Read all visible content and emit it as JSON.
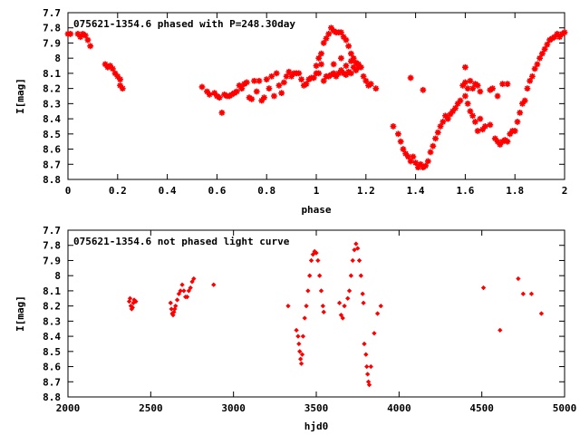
{
  "chart_data": [
    {
      "type": "scatter",
      "title": "075621-1354.6 phased with P=248.30day",
      "xlabel": "phase",
      "ylabel": "I[mag]",
      "xlim": [
        0,
        2
      ],
      "ylim": [
        8.8,
        7.7
      ],
      "y_inverted": true,
      "x_ticks": [
        "0",
        "0.2",
        "0.4",
        "0.6",
        "0.8",
        "1",
        "1.2",
        "1.4",
        "1.6",
        "1.8",
        "2"
      ],
      "y_ticks": [
        "7.7",
        "7.8",
        "7.9",
        "8",
        "8.1",
        "8.2",
        "8.3",
        "8.4",
        "8.5",
        "8.6",
        "8.7",
        "8.8"
      ],
      "marker": "star",
      "color": "#ff0000",
      "grid": false,
      "points": [
        [
          0.0,
          7.84
        ],
        [
          0.01,
          7.84
        ],
        [
          0.04,
          7.84
        ],
        [
          0.05,
          7.86
        ],
        [
          0.06,
          7.84
        ],
        [
          0.07,
          7.85
        ],
        [
          0.08,
          7.88
        ],
        [
          0.09,
          7.92
        ],
        [
          0.15,
          8.04
        ],
        [
          0.16,
          8.06
        ],
        [
          0.17,
          8.05
        ],
        [
          0.18,
          8.07
        ],
        [
          0.19,
          8.1
        ],
        [
          0.2,
          8.12
        ],
        [
          0.21,
          8.14
        ],
        [
          0.21,
          8.18
        ],
        [
          0.22,
          8.2
        ],
        [
          0.54,
          8.19
        ],
        [
          0.56,
          8.22
        ],
        [
          0.57,
          8.24
        ],
        [
          0.59,
          8.23
        ],
        [
          0.6,
          8.25
        ],
        [
          0.61,
          8.26
        ],
        [
          0.62,
          8.36
        ],
        [
          0.63,
          8.24
        ],
        [
          0.64,
          8.25
        ],
        [
          0.65,
          8.25
        ],
        [
          0.66,
          8.24
        ],
        [
          0.67,
          8.23
        ],
        [
          0.68,
          8.22
        ],
        [
          0.69,
          8.18
        ],
        [
          0.7,
          8.2
        ],
        [
          0.71,
          8.17
        ],
        [
          0.72,
          8.16
        ],
        [
          0.73,
          8.26
        ],
        [
          0.74,
          8.27
        ],
        [
          0.75,
          8.15
        ],
        [
          0.76,
          8.22
        ],
        [
          0.77,
          8.15
        ],
        [
          0.78,
          8.28
        ],
        [
          0.79,
          8.26
        ],
        [
          0.8,
          8.14
        ],
        [
          0.81,
          8.2
        ],
        [
          0.82,
          8.12
        ],
        [
          0.83,
          8.25
        ],
        [
          0.84,
          8.1
        ],
        [
          0.85,
          8.18
        ],
        [
          0.86,
          8.23
        ],
        [
          0.87,
          8.16
        ],
        [
          0.88,
          8.12
        ],
        [
          0.89,
          8.09
        ],
        [
          0.9,
          8.12
        ],
        [
          0.91,
          8.1
        ],
        [
          0.92,
          8.1
        ],
        [
          0.93,
          8.1
        ],
        [
          0.94,
          8.14
        ],
        [
          0.95,
          8.18
        ],
        [
          0.96,
          8.17
        ],
        [
          0.97,
          8.14
        ],
        [
          0.98,
          8.13
        ],
        [
          0.99,
          8.13
        ],
        [
          1.0,
          8.1
        ],
        [
          1.01,
          8.1
        ],
        [
          1.02,
          8.04
        ],
        [
          1.0,
          8.05
        ],
        [
          1.01,
          8.0
        ],
        [
          1.02,
          7.97
        ],
        [
          1.03,
          7.9
        ],
        [
          1.04,
          7.87
        ],
        [
          1.05,
          7.84
        ],
        [
          1.06,
          7.8
        ],
        [
          1.07,
          7.82
        ],
        [
          1.08,
          7.83
        ],
        [
          1.09,
          7.83
        ],
        [
          1.1,
          7.83
        ],
        [
          1.11,
          7.86
        ],
        [
          1.12,
          7.88
        ],
        [
          1.13,
          7.92
        ],
        [
          1.14,
          7.97
        ],
        [
          1.15,
          8.0
        ],
        [
          1.16,
          8.03
        ],
        [
          1.03,
          8.15
        ],
        [
          1.04,
          8.12
        ],
        [
          1.05,
          8.12
        ],
        [
          1.06,
          8.11
        ],
        [
          1.07,
          8.1
        ],
        [
          1.08,
          8.12
        ],
        [
          1.09,
          8.1
        ],
        [
          1.1,
          8.08
        ],
        [
          1.11,
          8.1
        ],
        [
          1.12,
          8.11
        ],
        [
          1.13,
          8.09
        ],
        [
          1.14,
          8.1
        ],
        [
          1.15,
          8.06
        ],
        [
          1.16,
          8.08
        ],
        [
          1.17,
          8.04
        ],
        [
          1.18,
          8.06
        ],
        [
          1.07,
          8.04
        ],
        [
          1.1,
          8.0
        ],
        [
          1.12,
          8.05
        ],
        [
          1.14,
          8.02
        ],
        [
          1.17,
          8.06
        ],
        [
          1.19,
          8.12
        ],
        [
          1.2,
          8.15
        ],
        [
          1.21,
          8.18
        ],
        [
          1.22,
          8.17
        ],
        [
          1.24,
          8.2
        ],
        [
          1.31,
          8.45
        ],
        [
          1.33,
          8.5
        ],
        [
          1.34,
          8.55
        ],
        [
          1.35,
          8.6
        ],
        [
          1.36,
          8.63
        ],
        [
          1.37,
          8.65
        ],
        [
          1.38,
          8.68
        ],
        [
          1.39,
          8.65
        ],
        [
          1.4,
          8.69
        ],
        [
          1.41,
          8.72
        ],
        [
          1.42,
          8.7
        ],
        [
          1.43,
          8.72
        ],
        [
          1.44,
          8.71
        ],
        [
          1.45,
          8.68
        ],
        [
          1.38,
          8.13
        ],
        [
          1.43,
          8.21
        ],
        [
          1.46,
          8.62
        ],
        [
          1.47,
          8.58
        ],
        [
          1.48,
          8.53
        ],
        [
          1.49,
          8.49
        ],
        [
          1.5,
          8.45
        ],
        [
          1.51,
          8.42
        ],
        [
          1.52,
          8.38
        ],
        [
          1.53,
          8.4
        ],
        [
          1.54,
          8.37
        ],
        [
          1.55,
          8.35
        ],
        [
          1.56,
          8.33
        ],
        [
          1.57,
          8.3
        ],
        [
          1.58,
          8.28
        ],
        [
          1.59,
          8.18
        ],
        [
          1.6,
          8.16
        ],
        [
          1.61,
          8.2
        ],
        [
          1.62,
          8.15
        ],
        [
          1.63,
          8.2
        ],
        [
          1.64,
          8.17
        ],
        [
          1.65,
          8.18
        ],
        [
          1.66,
          8.22
        ],
        [
          1.6,
          8.06
        ],
        [
          1.6,
          8.25
        ],
        [
          1.61,
          8.3
        ],
        [
          1.62,
          8.35
        ],
        [
          1.63,
          8.38
        ],
        [
          1.64,
          8.42
        ],
        [
          1.65,
          8.48
        ],
        [
          1.66,
          8.4
        ],
        [
          1.67,
          8.47
        ],
        [
          1.68,
          8.45
        ],
        [
          1.7,
          8.44
        ],
        [
          1.7,
          8.21
        ],
        [
          1.71,
          8.2
        ],
        [
          1.72,
          8.53
        ],
        [
          1.73,
          8.55
        ],
        [
          1.74,
          8.57
        ],
        [
          1.75,
          8.55
        ],
        [
          1.76,
          8.54
        ],
        [
          1.77,
          8.55
        ],
        [
          1.73,
          8.25
        ],
        [
          1.75,
          8.17
        ],
        [
          1.77,
          8.17
        ],
        [
          1.78,
          8.5
        ],
        [
          1.79,
          8.48
        ],
        [
          1.8,
          8.48
        ],
        [
          1.81,
          8.42
        ],
        [
          1.82,
          8.36
        ],
        [
          1.83,
          8.3
        ],
        [
          1.84,
          8.28
        ],
        [
          1.85,
          8.2
        ],
        [
          1.86,
          8.15
        ],
        [
          1.87,
          8.12
        ],
        [
          1.88,
          8.07
        ],
        [
          1.89,
          8.04
        ],
        [
          1.9,
          8.0
        ],
        [
          1.91,
          7.97
        ],
        [
          1.92,
          7.94
        ],
        [
          1.93,
          7.91
        ],
        [
          1.94,
          7.88
        ],
        [
          1.95,
          7.87
        ],
        [
          1.96,
          7.86
        ],
        [
          1.97,
          7.84
        ],
        [
          1.98,
          7.86
        ],
        [
          1.99,
          7.84
        ],
        [
          2.0,
          7.83
        ]
      ]
    },
    {
      "type": "scatter",
      "title": "075621-1354.6 not phased light curve",
      "xlabel": "hjd0",
      "ylabel": "I[mag]",
      "xlim": [
        2000,
        5000
      ],
      "ylim": [
        8.8,
        7.7
      ],
      "y_inverted": true,
      "x_ticks": [
        "2000",
        "2500",
        "3000",
        "3500",
        "4000",
        "4500",
        "5000"
      ],
      "y_ticks": [
        "7.7",
        "7.8",
        "7.9",
        "8",
        "8.1",
        "8.2",
        "8.3",
        "8.4",
        "8.5",
        "8.6",
        "8.7",
        "8.8"
      ],
      "marker": "diamond",
      "color": "#ff0000",
      "grid": false,
      "points": [
        [
          2370,
          8.17
        ],
        [
          2375,
          8.15
        ],
        [
          2380,
          8.2
        ],
        [
          2385,
          8.22
        ],
        [
          2390,
          8.21
        ],
        [
          2395,
          8.18
        ],
        [
          2400,
          8.16
        ],
        [
          2410,
          8.17
        ],
        [
          2620,
          8.18
        ],
        [
          2625,
          8.22
        ],
        [
          2630,
          8.25
        ],
        [
          2635,
          8.26
        ],
        [
          2640,
          8.24
        ],
        [
          2645,
          8.22
        ],
        [
          2650,
          8.2
        ],
        [
          2660,
          8.16
        ],
        [
          2670,
          8.12
        ],
        [
          2680,
          8.1
        ],
        [
          2690,
          8.06
        ],
        [
          2700,
          8.1
        ],
        [
          2710,
          8.14
        ],
        [
          2720,
          8.14
        ],
        [
          2730,
          8.1
        ],
        [
          2740,
          8.08
        ],
        [
          2750,
          8.04
        ],
        [
          2760,
          8.02
        ],
        [
          2880,
          8.06
        ],
        [
          3330,
          8.2
        ],
        [
          3380,
          8.36
        ],
        [
          3390,
          8.4
        ],
        [
          3395,
          8.45
        ],
        [
          3400,
          8.5
        ],
        [
          3405,
          8.55
        ],
        [
          3410,
          8.58
        ],
        [
          3415,
          8.52
        ],
        [
          3420,
          8.4
        ],
        [
          3430,
          8.28
        ],
        [
          3440,
          8.2
        ],
        [
          3450,
          8.1
        ],
        [
          3460,
          8.0
        ],
        [
          3470,
          7.9
        ],
        [
          3480,
          7.86
        ],
        [
          3490,
          7.84
        ],
        [
          3500,
          7.85
        ],
        [
          3510,
          7.9
        ],
        [
          3520,
          8.0
        ],
        [
          3530,
          8.1
        ],
        [
          3540,
          8.2
        ],
        [
          3545,
          8.24
        ],
        [
          3640,
          8.18
        ],
        [
          3650,
          8.26
        ],
        [
          3660,
          8.28
        ],
        [
          3670,
          8.2
        ],
        [
          3690,
          8.15
        ],
        [
          3700,
          8.1
        ],
        [
          3710,
          8.0
        ],
        [
          3720,
          7.9
        ],
        [
          3730,
          7.83
        ],
        [
          3740,
          7.79
        ],
        [
          3750,
          7.82
        ],
        [
          3760,
          7.9
        ],
        [
          3770,
          8.0
        ],
        [
          3780,
          8.12
        ],
        [
          3785,
          8.18
        ],
        [
          3790,
          8.45
        ],
        [
          3800,
          8.52
        ],
        [
          3805,
          8.6
        ],
        [
          3810,
          8.65
        ],
        [
          3815,
          8.7
        ],
        [
          3820,
          8.72
        ],
        [
          3830,
          8.6
        ],
        [
          3850,
          8.38
        ],
        [
          3870,
          8.25
        ],
        [
          3890,
          8.2
        ],
        [
          4510,
          8.08
        ],
        [
          4610,
          8.36
        ],
        [
          4720,
          8.02
        ],
        [
          4750,
          8.12
        ],
        [
          4800,
          8.12
        ],
        [
          4860,
          8.25
        ]
      ]
    }
  ]
}
